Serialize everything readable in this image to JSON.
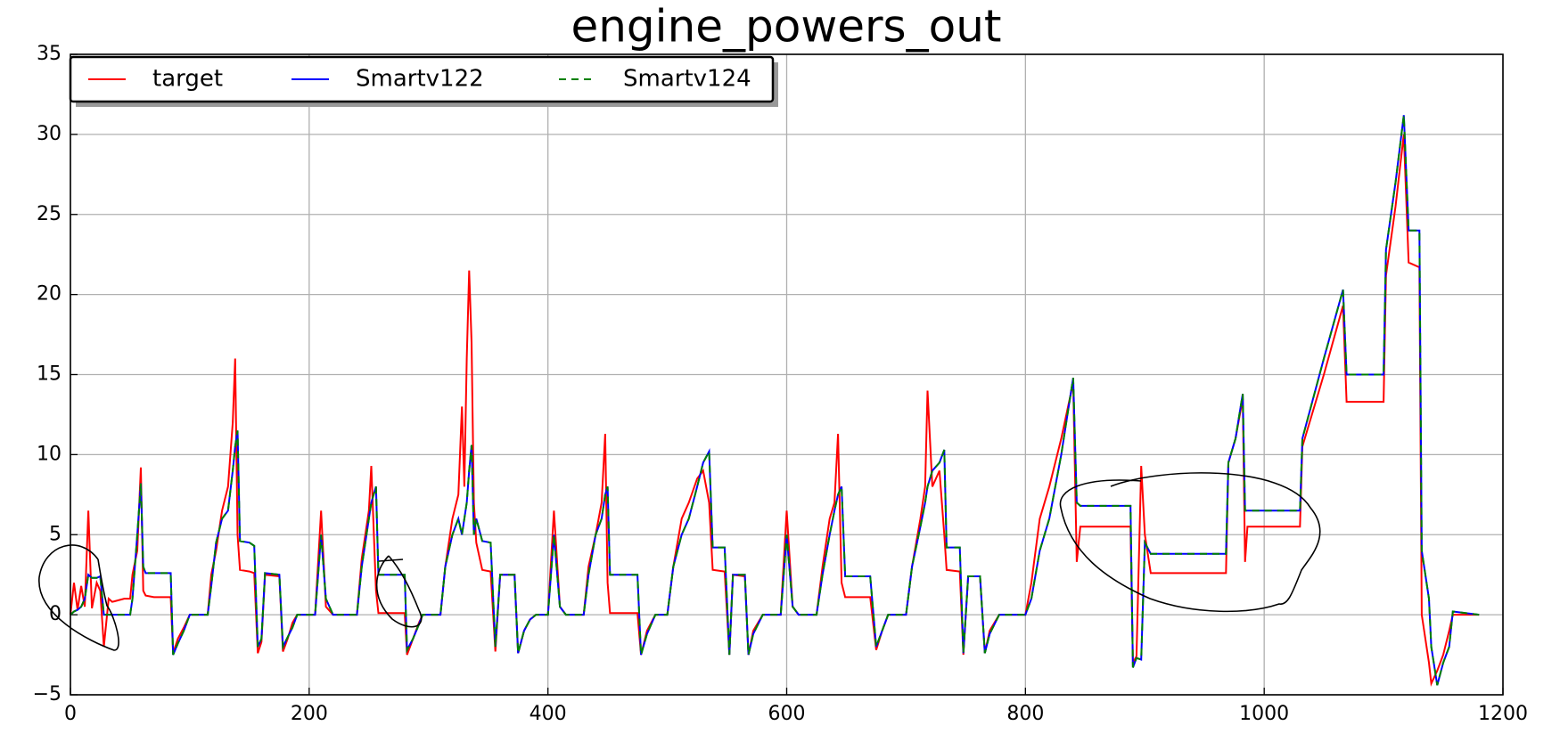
{
  "chart_data": {
    "type": "line",
    "title": "engine_powers_out",
    "x": [
      0,
      3,
      6,
      9,
      12,
      15,
      18,
      22,
      25,
      28,
      32,
      35,
      45,
      50,
      52,
      56,
      59,
      61,
      63,
      70,
      84,
      86,
      90,
      95,
      100,
      115,
      118,
      122,
      127,
      132,
      136,
      138,
      140,
      142,
      150,
      154,
      157,
      160,
      163,
      175,
      178,
      182,
      186,
      190,
      205,
      210,
      214,
      220,
      240,
      244,
      250,
      252,
      256,
      258,
      270,
      280,
      282,
      287,
      292,
      295,
      310,
      314,
      320,
      325,
      328,
      330,
      332,
      334,
      336,
      338,
      340,
      345,
      352,
      356,
      360,
      372,
      375,
      380,
      385,
      390,
      400,
      405,
      410,
      415,
      430,
      434,
      440,
      445,
      448,
      450,
      452,
      475,
      478,
      483,
      490,
      500,
      505,
      512,
      518,
      525,
      530,
      535,
      538,
      548,
      552,
      555,
      565,
      568,
      572,
      580,
      595,
      600,
      605,
      610,
      625,
      630,
      636,
      640,
      643,
      646,
      649,
      670,
      675,
      680,
      685,
      700,
      705,
      712,
      716,
      718,
      722,
      728,
      732,
      734,
      745,
      748,
      752,
      762,
      766,
      770,
      778,
      800,
      805,
      812,
      820,
      830,
      840,
      843,
      846,
      888,
      890,
      893,
      897,
      900,
      905,
      968,
      970,
      976,
      982,
      984,
      986,
      1030,
      1032,
      1050,
      1066,
      1069,
      1100,
      1102,
      1110,
      1117,
      1121,
      1130,
      1132,
      1138,
      1140,
      1145,
      1150,
      1155,
      1158,
      1180
    ],
    "series": [
      {
        "name": "target",
        "color": "#ff0000",
        "values": [
          0,
          2,
          0.3,
          1.8,
          0.5,
          6.5,
          0.4,
          2,
          1.5,
          -2,
          1,
          0.8,
          1,
          1,
          2.5,
          4,
          9.2,
          1.5,
          1.2,
          1.1,
          1.1,
          -2.4,
          -1.5,
          -0.8,
          0,
          0,
          2.5,
          4,
          6.5,
          8,
          12,
          16,
          5,
          2.8,
          2.7,
          2.6,
          -2.4,
          -1.7,
          2.5,
          2.4,
          -2.3,
          -1.5,
          -0.5,
          0,
          0,
          6.5,
          0.5,
          0,
          0,
          3.5,
          6.5,
          9.3,
          1.5,
          0.1,
          0.1,
          0.1,
          -2.5,
          -1.5,
          -0.5,
          0,
          0,
          3,
          6,
          7.5,
          13,
          8,
          16,
          21.5,
          17,
          7,
          4.5,
          2.8,
          2.7,
          -2.3,
          2.5,
          2.5,
          -2.4,
          -1,
          -0.3,
          0,
          0,
          6.5,
          0.5,
          0,
          0,
          3,
          5,
          7,
          11.3,
          2,
          0.1,
          0.1,
          -2.5,
          -1,
          0,
          0,
          3,
          6,
          7,
          8.5,
          9,
          7,
          2.8,
          2.7,
          -2.5,
          2.5,
          2.4,
          -2.5,
          -1,
          0,
          0,
          6.5,
          0.5,
          0,
          0,
          3,
          6,
          7,
          11.3,
          2,
          1.1,
          1.1,
          -2.2,
          -1,
          0,
          0,
          3,
          6,
          8,
          14,
          8,
          9,
          5,
          2.8,
          2.7,
          -2.5,
          2.4,
          2.4,
          -2.4,
          -1,
          0,
          0,
          2,
          6,
          8,
          11,
          14.5,
          3.3,
          5.5,
          5.5,
          -3,
          -2.6,
          9.3,
          5,
          2.6,
          2.6,
          9.5,
          11,
          13.5,
          3.3,
          5.5,
          5.5,
          10.5,
          15,
          19.3,
          13.3,
          13.3,
          21.2,
          25.5,
          30,
          22,
          21.7,
          0,
          -3,
          -4.3,
          -3.5,
          -2.5,
          -1,
          0,
          0
        ]
      },
      {
        "name": "Smartv122",
        "color": "#0000ff",
        "values": [
          0,
          0.2,
          0.3,
          0.5,
          1,
          2.5,
          2.3,
          2.3,
          2.4,
          0,
          0,
          0,
          0,
          0,
          1,
          5,
          8.2,
          3,
          2.6,
          2.6,
          2.6,
          -2.5,
          -1.8,
          -1,
          0,
          0,
          1.8,
          4.5,
          6,
          6.5,
          9,
          10.5,
          11.5,
          4.6,
          4.5,
          4.3,
          -2,
          -1.5,
          2.6,
          2.5,
          -2,
          -1.4,
          -0.8,
          0,
          0,
          5,
          1,
          0,
          0,
          3,
          6,
          7,
          8,
          2.5,
          2.5,
          2.5,
          -2.2,
          -1.5,
          -0.6,
          0,
          0,
          3,
          5,
          6,
          5,
          6,
          7,
          9,
          10.6,
          5,
          6,
          4.6,
          4.5,
          -2,
          2.5,
          2.5,
          -2.4,
          -1,
          -0.3,
          0,
          0,
          5,
          0.5,
          0,
          0,
          2.5,
          5,
          6,
          7.5,
          8,
          2.5,
          2.5,
          -2.5,
          -1.2,
          0,
          0,
          3,
          5,
          6,
          8,
          9.5,
          10.2,
          4.2,
          4.2,
          -2.5,
          2.5,
          2.5,
          -2.5,
          -1.2,
          0,
          0,
          5,
          0.5,
          0,
          0,
          2.5,
          5,
          6.5,
          7.5,
          8,
          2.4,
          2.4,
          -2,
          -1,
          0,
          0,
          3,
          5.5,
          7,
          8,
          9,
          9.5,
          10.3,
          4.2,
          4.2,
          -2.4,
          2.4,
          2.4,
          -2.4,
          -1.2,
          0,
          0,
          1,
          4,
          6,
          10,
          14.8,
          7,
          6.8,
          6.8,
          -3.3,
          -2.7,
          -2.8,
          4.5,
          3.8,
          3.8,
          9.5,
          11,
          13.8,
          6.5,
          6.5,
          6.5,
          11,
          16,
          20.3,
          15,
          15,
          22.8,
          27,
          31.2,
          24,
          24,
          4,
          1,
          -2,
          -4.4,
          -3,
          -2,
          0.2,
          0
        ]
      },
      {
        "name": "Smartv124",
        "color": "#008000",
        "dashed": true,
        "values": [
          0,
          0.2,
          0.3,
          0.5,
          1,
          2.5,
          2.3,
          2.3,
          2.4,
          0,
          0,
          0,
          0,
          0,
          1,
          5,
          8.2,
          3,
          2.6,
          2.6,
          2.6,
          -2.5,
          -1.8,
          -1,
          0,
          0,
          1.8,
          4.5,
          6,
          6.5,
          9,
          10.5,
          11.5,
          4.6,
          4.5,
          4.3,
          -2,
          -1.5,
          2.6,
          2.5,
          -2,
          -1.4,
          -0.8,
          0,
          0,
          5,
          1,
          0,
          0,
          3,
          6,
          7,
          8,
          2.5,
          2.5,
          2.5,
          -2.2,
          -1.5,
          -0.6,
          0,
          0,
          3,
          5,
          6,
          5,
          6,
          7,
          9,
          10.6,
          5,
          6,
          4.6,
          4.5,
          -2,
          2.5,
          2.5,
          -2.4,
          -1,
          -0.3,
          0,
          0,
          5,
          0.5,
          0,
          0,
          2.5,
          5,
          6,
          7.5,
          8,
          2.5,
          2.5,
          -2.5,
          -1.2,
          0,
          0,
          3,
          5,
          6,
          8,
          9.5,
          10.2,
          4.2,
          4.2,
          -2.5,
          2.5,
          2.5,
          -2.5,
          -1.2,
          0,
          0,
          5,
          0.5,
          0,
          0,
          2.5,
          5,
          6.5,
          7.5,
          8,
          2.4,
          2.4,
          -2,
          -1,
          0,
          0,
          3,
          5.5,
          7,
          8,
          9,
          9.5,
          10.3,
          4.2,
          4.2,
          -2.4,
          2.4,
          2.4,
          -2.4,
          -1.2,
          0,
          0,
          1,
          4,
          6,
          10,
          14.8,
          7,
          6.8,
          6.8,
          -3.3,
          -2.7,
          -2.8,
          4.5,
          3.8,
          3.8,
          9.5,
          11,
          13.8,
          6.5,
          6.5,
          6.5,
          11,
          16,
          20.3,
          15,
          15,
          22.8,
          27,
          31.2,
          24,
          24,
          4,
          1,
          -2,
          -4.4,
          -3,
          -2,
          0.2,
          0
        ]
      }
    ],
    "xlim": [
      0,
      1200
    ],
    "xticks": [
      0,
      200,
      400,
      600,
      800,
      1000,
      1200
    ],
    "ylim": [
      -5,
      35
    ],
    "yticks": [
      {
        "value": -5,
        "label": "−5"
      },
      0,
      5,
      10,
      15,
      20,
      25,
      30,
      35
    ],
    "grid": true,
    "legend": "upper left"
  }
}
